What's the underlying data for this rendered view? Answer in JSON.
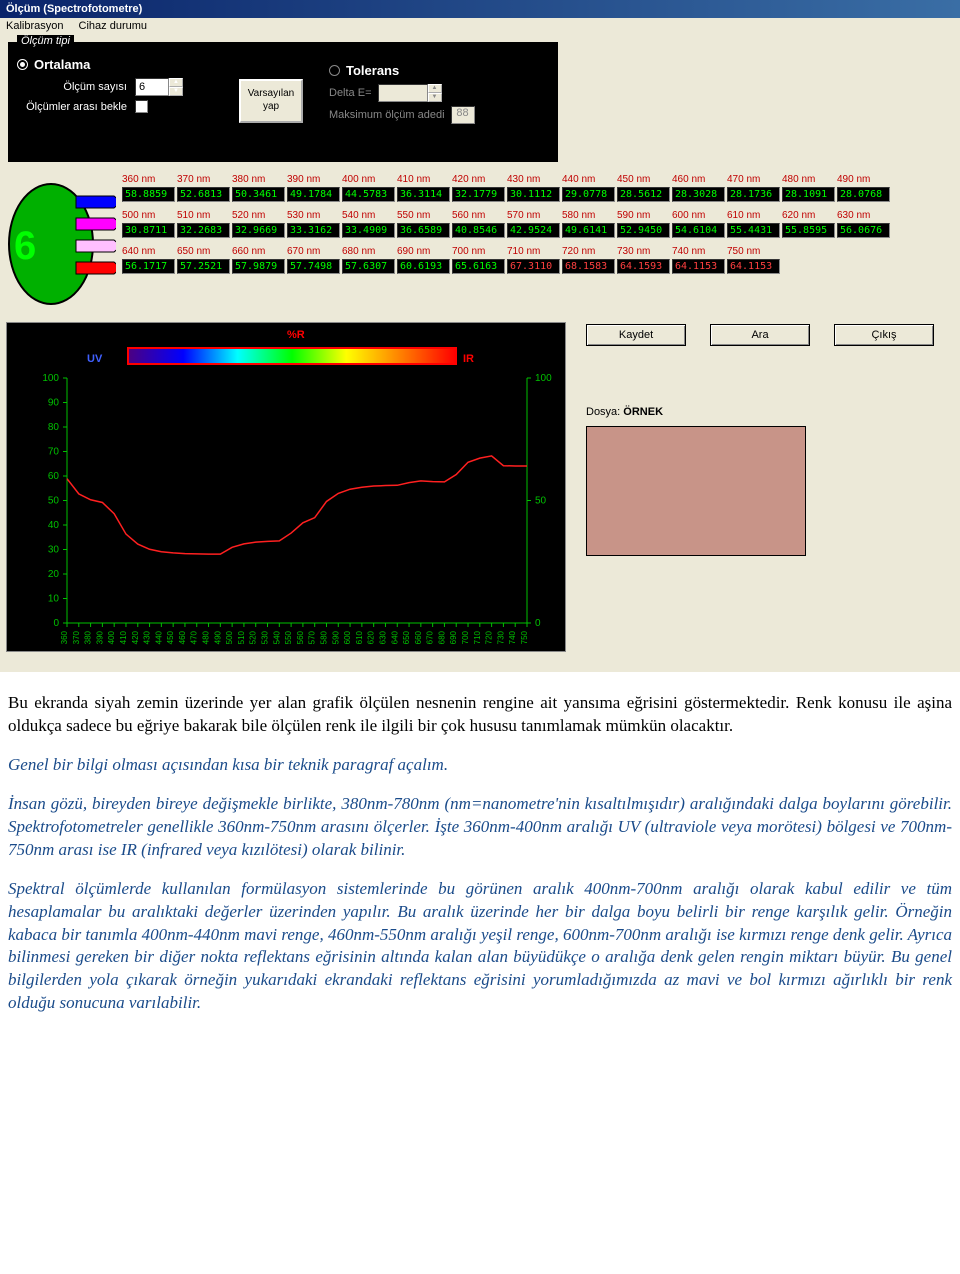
{
  "window": {
    "title": "Ölçüm (Spectrofotometre)",
    "menu": {
      "kalibrasyon": "Kalibrasyon",
      "cihaz_durumu": "Cihaz durumu"
    }
  },
  "olcum_tipi": {
    "legend": "Ölçüm tipi",
    "ortalama": "Ortalama",
    "tolerans": "Tolerans",
    "olcum_sayisi_label": "Ölçüm sayısı",
    "olcum_sayisi_value": "6",
    "bekle_label": "Ölçümler arası bekle",
    "bekle_checked": "✓",
    "varsayilan": "Varsayılan\nyap",
    "delta_e": "Delta E=",
    "max_olcum": "Maksimum ölçüm adedi",
    "max_olcum_val": "88"
  },
  "sensor_number": "6",
  "readings": {
    "row1_nm": [
      "360 nm",
      "370 nm",
      "380 nm",
      "390 nm",
      "400 nm",
      "410 nm",
      "420 nm",
      "430 nm",
      "440 nm",
      "450 nm",
      "460 nm",
      "470 nm",
      "480 nm",
      "490 nm"
    ],
    "row1_val": [
      "58.8859",
      "52.6813",
      "50.3461",
      "49.1784",
      "44.5783",
      "36.3114",
      "32.1779",
      "30.1112",
      "29.0778",
      "28.5612",
      "28.3028",
      "28.1736",
      "28.1091",
      "28.0768"
    ],
    "row2_nm": [
      "500 nm",
      "510 nm",
      "520 nm",
      "530 nm",
      "540 nm",
      "550 nm",
      "560 nm",
      "570 nm",
      "580 nm",
      "590 nm",
      "600 nm",
      "610 nm",
      "620 nm",
      "630 nm"
    ],
    "row2_val": [
      "30.8711",
      "32.2683",
      "32.9669",
      "33.3162",
      "33.4909",
      "36.6589",
      "40.8546",
      "42.9524",
      "49.6141",
      "52.9450",
      "54.6104",
      "55.4431",
      "55.8595",
      "56.0676"
    ],
    "row3_nm": [
      "640 nm",
      "650 nm",
      "660 nm",
      "670 nm",
      "680 nm",
      "690 nm",
      "700 nm",
      "710 nm",
      "720 nm",
      "730 nm",
      "740 nm",
      "750 nm"
    ],
    "row3_val": [
      "56.1717",
      "57.2521",
      "57.9879",
      "57.7498",
      "57.6307",
      "60.6193",
      "65.6163",
      "67.3110",
      "68.1583",
      "64.1593",
      "64.1153",
      "64.1153"
    ],
    "row3_red_from": 7
  },
  "buttons": {
    "kaydet": "Kaydet",
    "ara": "Ara",
    "cikis": "Çıkış"
  },
  "dosya": {
    "label": "Dosya: ",
    "name": "ÖRNEK"
  },
  "swatch_color": "#c89488",
  "chart": {
    "uv": "UV",
    "ir": "IR",
    "pr": "%R",
    "ylim": [
      0,
      100
    ],
    "ytick_step": 10,
    "xlim": [
      360,
      750
    ],
    "xtick_step": 10,
    "line_color": "#ff2020",
    "axis_color": "#00c000",
    "xvals": [
      360,
      370,
      380,
      390,
      400,
      410,
      420,
      430,
      440,
      450,
      460,
      470,
      480,
      490,
      500,
      510,
      520,
      530,
      540,
      550,
      560,
      570,
      580,
      590,
      600,
      610,
      620,
      630,
      640,
      650,
      660,
      670,
      680,
      690,
      700,
      710,
      720,
      730,
      740,
      750
    ],
    "yvals": [
      58.9,
      52.7,
      50.3,
      49.2,
      44.6,
      36.3,
      32.2,
      30.1,
      29.1,
      28.6,
      28.3,
      28.2,
      28.1,
      28.1,
      30.9,
      32.3,
      33.0,
      33.3,
      33.5,
      36.7,
      40.9,
      43.0,
      49.6,
      52.9,
      54.6,
      55.4,
      55.9,
      56.1,
      56.2,
      57.3,
      58.0,
      57.7,
      57.6,
      60.6,
      65.6,
      67.3,
      68.2,
      64.2,
      64.1,
      64.1
    ]
  },
  "article": {
    "p1": "Bu ekranda siyah zemin üzerinde yer alan grafik ölçülen nesnenin rengine ait yansıma eğrisini göstermektedir. Renk konusu ile aşina oldukça sadece bu eğriye bakarak bile ölçülen renk ile ilgili bir çok hususu tanımlamak mümkün olacaktır.",
    "p2": "Genel bir bilgi olması açısından kısa bir teknik paragraf açalım.",
    "p3": "İnsan gözü, bireyden bireye değişmekle birlikte, 380nm-780nm (nm=nanometre'nin kısaltılmışıdır) aralığındaki dalga boylarını görebilir. Spektrofotometreler genellikle 360nm-750nm arasını ölçerler. İşte 360nm-400nm aralığı UV (ultraviole veya morötesi) bölgesi ve 700nm-750nm arası ise IR (infrared veya kızılötesi) olarak bilinir.",
    "p4": "Spektral ölçümlerde kullanılan formülasyon sistemlerinde bu görünen aralık 400nm-700nm aralığı olarak kabul edilir ve tüm hesaplamalar bu aralıktaki değerler üzerinden yapılır. Bu aralık üzerinde her bir dalga boyu belirli bir renge karşılık gelir. Örneğin kabaca bir tanımla 400nm-440nm mavi renge, 460nm-550nm aralığı yeşil renge, 600nm-700nm aralığı ise kırmızı renge denk gelir. Ayrıca bilinmesi gereken bir diğer nokta reflektans eğrisinin altında kalan alan büyüdükçe o aralığa denk gelen rengin miktarı büyür. Bu genel bilgilerden yola çıkarak örneğin yukarıdaki ekrandaki reflektans eğrisini yorumladığımızda az mavi ve bol kırmızı ağırlıklı bir renk olduğu sonucuna varılabilir."
  }
}
